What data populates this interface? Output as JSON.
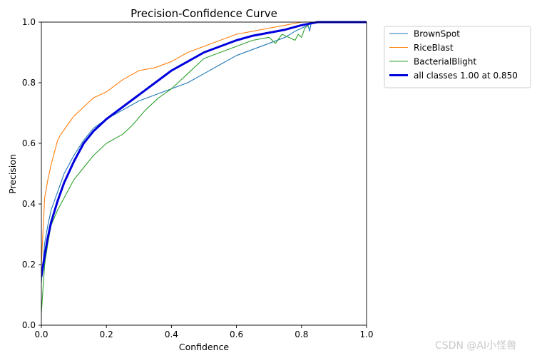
{
  "chart_data": {
    "type": "line",
    "title": "Precision-Confidence Curve",
    "xlabel": "Confidence",
    "ylabel": "Precision",
    "xlim": [
      0,
      1
    ],
    "ylim": [
      0,
      1
    ],
    "xticks": [
      "0.0",
      "0.2",
      "0.4",
      "0.6",
      "0.8",
      "1.0"
    ],
    "yticks": [
      "0.0",
      "0.2",
      "0.4",
      "0.6",
      "0.8",
      "1.0"
    ],
    "xtick_values": [
      0,
      0.2,
      0.4,
      0.6,
      0.8,
      1.0
    ],
    "ytick_values": [
      0,
      0.2,
      0.4,
      0.6,
      0.8,
      1.0
    ],
    "legend_position": "outside-top-right",
    "series": [
      {
        "name": "BrownSpot",
        "color": "#1f77b4",
        "points": [
          [
            0,
            0.14
          ],
          [
            0.01,
            0.27
          ],
          [
            0.02,
            0.33
          ],
          [
            0.03,
            0.38
          ],
          [
            0.05,
            0.44
          ],
          [
            0.07,
            0.5
          ],
          [
            0.1,
            0.56
          ],
          [
            0.13,
            0.61
          ],
          [
            0.16,
            0.65
          ],
          [
            0.2,
            0.68
          ],
          [
            0.25,
            0.71
          ],
          [
            0.3,
            0.74
          ],
          [
            0.35,
            0.76
          ],
          [
            0.4,
            0.78
          ],
          [
            0.45,
            0.8
          ],
          [
            0.5,
            0.83
          ],
          [
            0.55,
            0.86
          ],
          [
            0.6,
            0.89
          ],
          [
            0.65,
            0.91
          ],
          [
            0.7,
            0.93
          ],
          [
            0.75,
            0.95
          ],
          [
            0.78,
            0.97
          ],
          [
            0.8,
            0.98
          ],
          [
            0.82,
            0.99
          ],
          [
            0.825,
            0.97
          ],
          [
            0.83,
            1.0
          ],
          [
            1.0,
            1.0
          ]
        ]
      },
      {
        "name": "RiceBlast",
        "color": "#ff7f0e",
        "points": [
          [
            0,
            0.2
          ],
          [
            0.01,
            0.42
          ],
          [
            0.02,
            0.48
          ],
          [
            0.03,
            0.53
          ],
          [
            0.04,
            0.57
          ],
          [
            0.05,
            0.61
          ],
          [
            0.06,
            0.63
          ],
          [
            0.08,
            0.66
          ],
          [
            0.1,
            0.69
          ],
          [
            0.13,
            0.72
          ],
          [
            0.16,
            0.75
          ],
          [
            0.2,
            0.77
          ],
          [
            0.25,
            0.81
          ],
          [
            0.3,
            0.84
          ],
          [
            0.35,
            0.85
          ],
          [
            0.4,
            0.87
          ],
          [
            0.45,
            0.9
          ],
          [
            0.5,
            0.92
          ],
          [
            0.55,
            0.94
          ],
          [
            0.6,
            0.96
          ],
          [
            0.65,
            0.97
          ],
          [
            0.7,
            0.98
          ],
          [
            0.75,
            0.99
          ],
          [
            0.8,
            1.0
          ],
          [
            1.0,
            1.0
          ]
        ]
      },
      {
        "name": "BacterialBlight",
        "color": "#2ca02c",
        "points": [
          [
            0,
            0.04
          ],
          [
            0.01,
            0.2
          ],
          [
            0.02,
            0.27
          ],
          [
            0.03,
            0.33
          ],
          [
            0.05,
            0.38
          ],
          [
            0.07,
            0.42
          ],
          [
            0.1,
            0.48
          ],
          [
            0.13,
            0.52
          ],
          [
            0.16,
            0.56
          ],
          [
            0.2,
            0.6
          ],
          [
            0.25,
            0.63
          ],
          [
            0.28,
            0.66
          ],
          [
            0.32,
            0.71
          ],
          [
            0.36,
            0.75
          ],
          [
            0.4,
            0.78
          ],
          [
            0.45,
            0.83
          ],
          [
            0.5,
            0.88
          ],
          [
            0.55,
            0.9
          ],
          [
            0.6,
            0.92
          ],
          [
            0.65,
            0.94
          ],
          [
            0.7,
            0.95
          ],
          [
            0.72,
            0.93
          ],
          [
            0.74,
            0.96
          ],
          [
            0.76,
            0.95
          ],
          [
            0.78,
            0.94
          ],
          [
            0.79,
            0.96
          ],
          [
            0.8,
            0.95
          ],
          [
            0.81,
            0.98
          ],
          [
            0.82,
            0.99
          ],
          [
            0.83,
            1.0
          ],
          [
            1.0,
            1.0
          ]
        ]
      },
      {
        "name": "all classes 1.00 at 0.850",
        "color": "#0000dd",
        "bold": true,
        "points": [
          [
            0,
            0.16
          ],
          [
            0.01,
            0.23
          ],
          [
            0.02,
            0.29
          ],
          [
            0.03,
            0.34
          ],
          [
            0.05,
            0.41
          ],
          [
            0.07,
            0.47
          ],
          [
            0.1,
            0.54
          ],
          [
            0.13,
            0.6
          ],
          [
            0.16,
            0.64
          ],
          [
            0.2,
            0.68
          ],
          [
            0.25,
            0.72
          ],
          [
            0.3,
            0.76
          ],
          [
            0.35,
            0.8
          ],
          [
            0.4,
            0.84
          ],
          [
            0.45,
            0.87
          ],
          [
            0.5,
            0.9
          ],
          [
            0.55,
            0.92
          ],
          [
            0.6,
            0.94
          ],
          [
            0.65,
            0.955
          ],
          [
            0.7,
            0.965
          ],
          [
            0.75,
            0.975
          ],
          [
            0.8,
            0.99
          ],
          [
            0.85,
            1.0
          ],
          [
            1.0,
            1.0
          ]
        ]
      }
    ]
  },
  "watermark": "CSDN @AI小怪兽"
}
